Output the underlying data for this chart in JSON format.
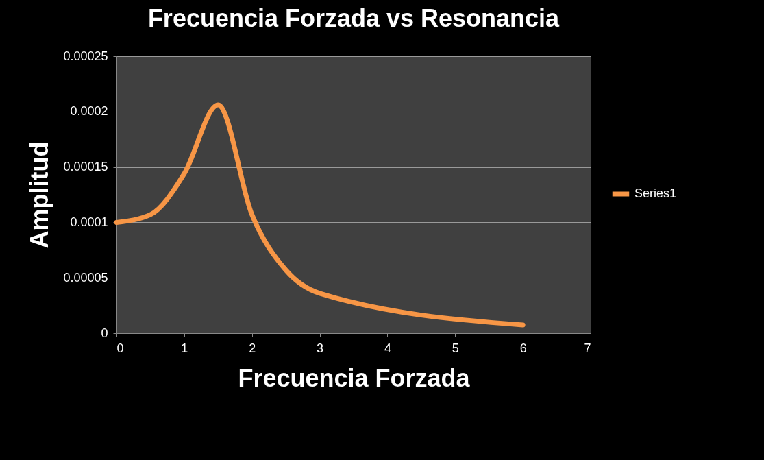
{
  "chart_data": {
    "type": "line",
    "title": "Frecuencia Forzada vs Resonancia",
    "xlabel": "Frecuencia Forzada",
    "ylabel": "Amplitud",
    "x": [
      0,
      0.5,
      1,
      1.5,
      2,
      2.5,
      3,
      6
    ],
    "series": [
      {
        "name": "Series1",
        "color": "#f79646",
        "values": [
          0.0001,
          0.000107,
          0.000144,
          0.000206,
          0.000107,
          5.7e-05,
          3.6e-05,
          7.4e-06
        ]
      }
    ],
    "xlim": [
      0,
      7
    ],
    "xticks": [
      0,
      1,
      2,
      3,
      4,
      5,
      6,
      7
    ],
    "ylim": [
      0,
      0.00025
    ],
    "yticks": [
      0,
      {
        "value": 5e-05,
        "label": "0.00005"
      },
      0.0001,
      0.00015,
      0.0002,
      0.00025
    ],
    "grid": "y",
    "legend": "right",
    "marker": "none",
    "line_style": "solid"
  }
}
